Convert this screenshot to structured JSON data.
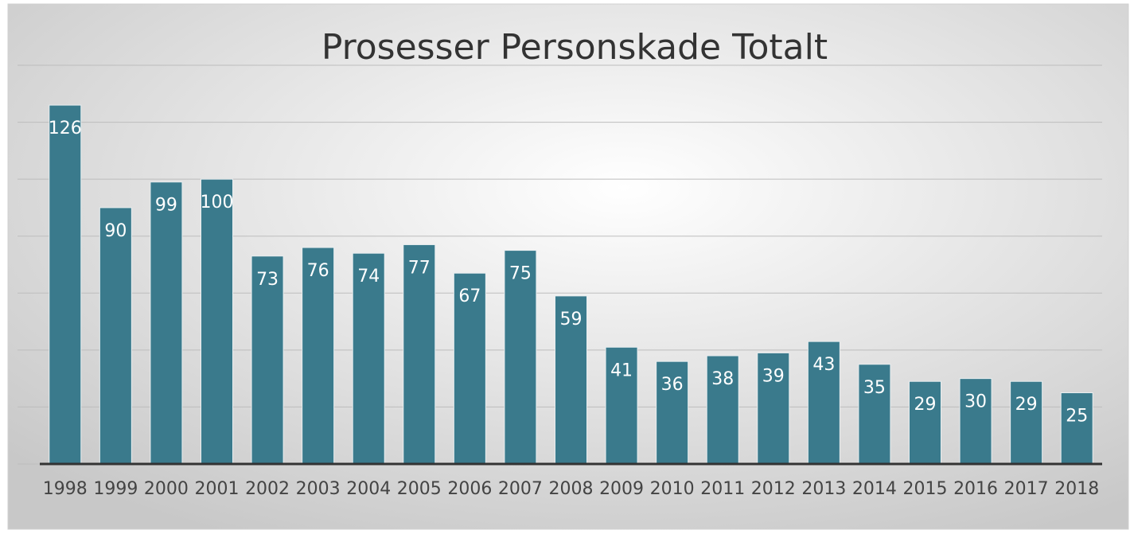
{
  "chart_data": {
    "type": "bar",
    "title": "Prosesser Personskade Totalt",
    "categories": [
      "1998",
      "1999",
      "2000",
      "2001",
      "2002",
      "2003",
      "2004",
      "2005",
      "2006",
      "2007",
      "2008",
      "2009",
      "2010",
      "2011",
      "2012",
      "2013",
      "2014",
      "2015",
      "2016",
      "2017",
      "2018"
    ],
    "values": [
      126,
      90,
      99,
      100,
      73,
      76,
      74,
      77,
      67,
      75,
      59,
      41,
      36,
      38,
      39,
      43,
      35,
      29,
      30,
      29,
      25
    ],
    "color": "#3a7a8c",
    "ylim": [
      0,
      140
    ],
    "yticks": [
      0,
      20,
      40,
      60,
      80,
      100,
      120,
      140
    ],
    "grid": true
  }
}
